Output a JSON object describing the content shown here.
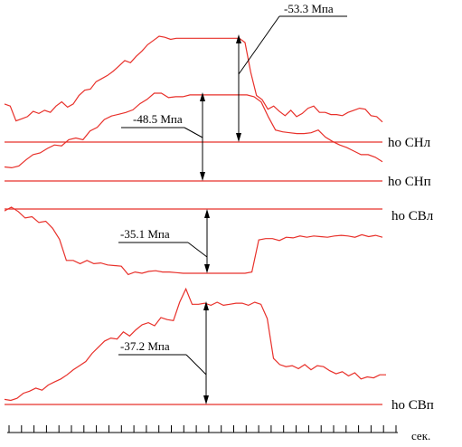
{
  "chart_data": {
    "type": "line",
    "title": "",
    "xlabel": "сек.",
    "ylabel": "",
    "grid": false,
    "x_tick_count": 32,
    "colors": {
      "trace": "#e8302a",
      "baseline": "#e8302a",
      "annotation": "#000000"
    },
    "series": [
      {
        "name": "СНл",
        "baseline_label": "ho СНл",
        "amplitude_label": "-53.3 Мпа",
        "values": [
          0.36,
          0.34,
          0.2,
          0.22,
          0.24,
          0.29,
          0.27,
          0.3,
          0.28,
          0.34,
          0.38,
          0.33,
          0.36,
          0.44,
          0.49,
          0.5,
          0.57,
          0.6,
          0.63,
          0.67,
          0.72,
          0.77,
          0.75,
          0.81,
          0.86,
          0.92,
          0.96,
          1.0,
          0.99,
          0.97,
          0.98,
          0.98,
          0.98,
          0.98,
          0.98,
          0.98,
          0.98,
          0.98,
          0.98,
          0.98,
          0.98,
          0.98,
          0.94,
          0.66,
          0.44,
          0.4,
          0.31,
          0.34,
          0.29,
          0.25,
          0.3,
          0.24,
          0.27,
          0.32,
          0.34,
          0.28,
          0.28,
          0.26,
          0.26,
          0.25,
          0.28,
          0.3,
          0.32,
          0.31,
          0.25,
          0.24,
          0.19
        ]
      },
      {
        "name": "СНп",
        "baseline_label": "ho СНп",
        "amplitude_label": "-48.5 Мпа",
        "values": [
          0.16,
          0.15,
          0.17,
          0.24,
          0.3,
          0.32,
          0.37,
          0.41,
          0.4,
          0.47,
          0.49,
          0.47,
          0.57,
          0.61,
          0.7,
          0.74,
          0.76,
          0.78,
          0.81,
          0.88,
          0.93,
          1.0,
          1.0,
          0.95,
          0.96,
          0.96,
          0.98,
          0.98,
          0.98,
          0.98,
          0.98,
          0.98,
          0.98,
          0.98,
          0.98,
          0.96,
          0.9,
          0.73,
          0.58,
          0.56,
          0.55,
          0.54,
          0.54,
          0.55,
          0.58,
          0.5,
          0.45,
          0.41,
          0.38,
          0.34,
          0.3,
          0.3,
          0.27,
          0.22
        ]
      },
      {
        "name": "СВл",
        "baseline_label": "ho СВл",
        "amplitude_label": "-35.1 Мпа",
        "values": [
          0.97,
          1.03,
          0.96,
          0.86,
          0.88,
          0.79,
          0.81,
          0.7,
          0.53,
          0.2,
          0.2,
          0.15,
          0.2,
          0.15,
          0.16,
          0.13,
          0.12,
          0.11,
          -0.02,
          0.02,
          0.0,
          0.03,
          0.04,
          0.02,
          0.02,
          0.01,
          0.0,
          0.0,
          0.0,
          0.0,
          0.0,
          0.0,
          0.0,
          0.0,
          0.0,
          0.0,
          0.02,
          0.52,
          0.54,
          0.54,
          0.51,
          0.56,
          0.55,
          0.58,
          0.56,
          0.58,
          0.57,
          0.56,
          0.58,
          0.59,
          0.58,
          0.56,
          0.6,
          0.57,
          0.59,
          0.56
        ]
      },
      {
        "name": "СВп",
        "baseline_label": "ho СВп",
        "amplitude_label": "-37.2 Мпа",
        "values": [
          0.05,
          0.04,
          0.06,
          0.11,
          0.13,
          0.16,
          0.14,
          0.19,
          0.22,
          0.25,
          0.29,
          0.34,
          0.38,
          0.42,
          0.5,
          0.56,
          0.62,
          0.65,
          0.64,
          0.71,
          0.67,
          0.73,
          0.78,
          0.8,
          0.77,
          0.85,
          0.83,
          0.82,
          1.0,
          1.13,
          0.98,
          0.98,
          0.99,
          0.97,
          1.0,
          0.97,
          0.98,
          0.99,
          0.99,
          0.97,
          1.0,
          0.98,
          0.84,
          0.45,
          0.39,
          0.37,
          0.38,
          0.35,
          0.39,
          0.34,
          0.38,
          0.37,
          0.33,
          0.3,
          0.32,
          0.28,
          0.31,
          0.25,
          0.27,
          0.26,
          0.29,
          0.29
        ]
      }
    ]
  }
}
